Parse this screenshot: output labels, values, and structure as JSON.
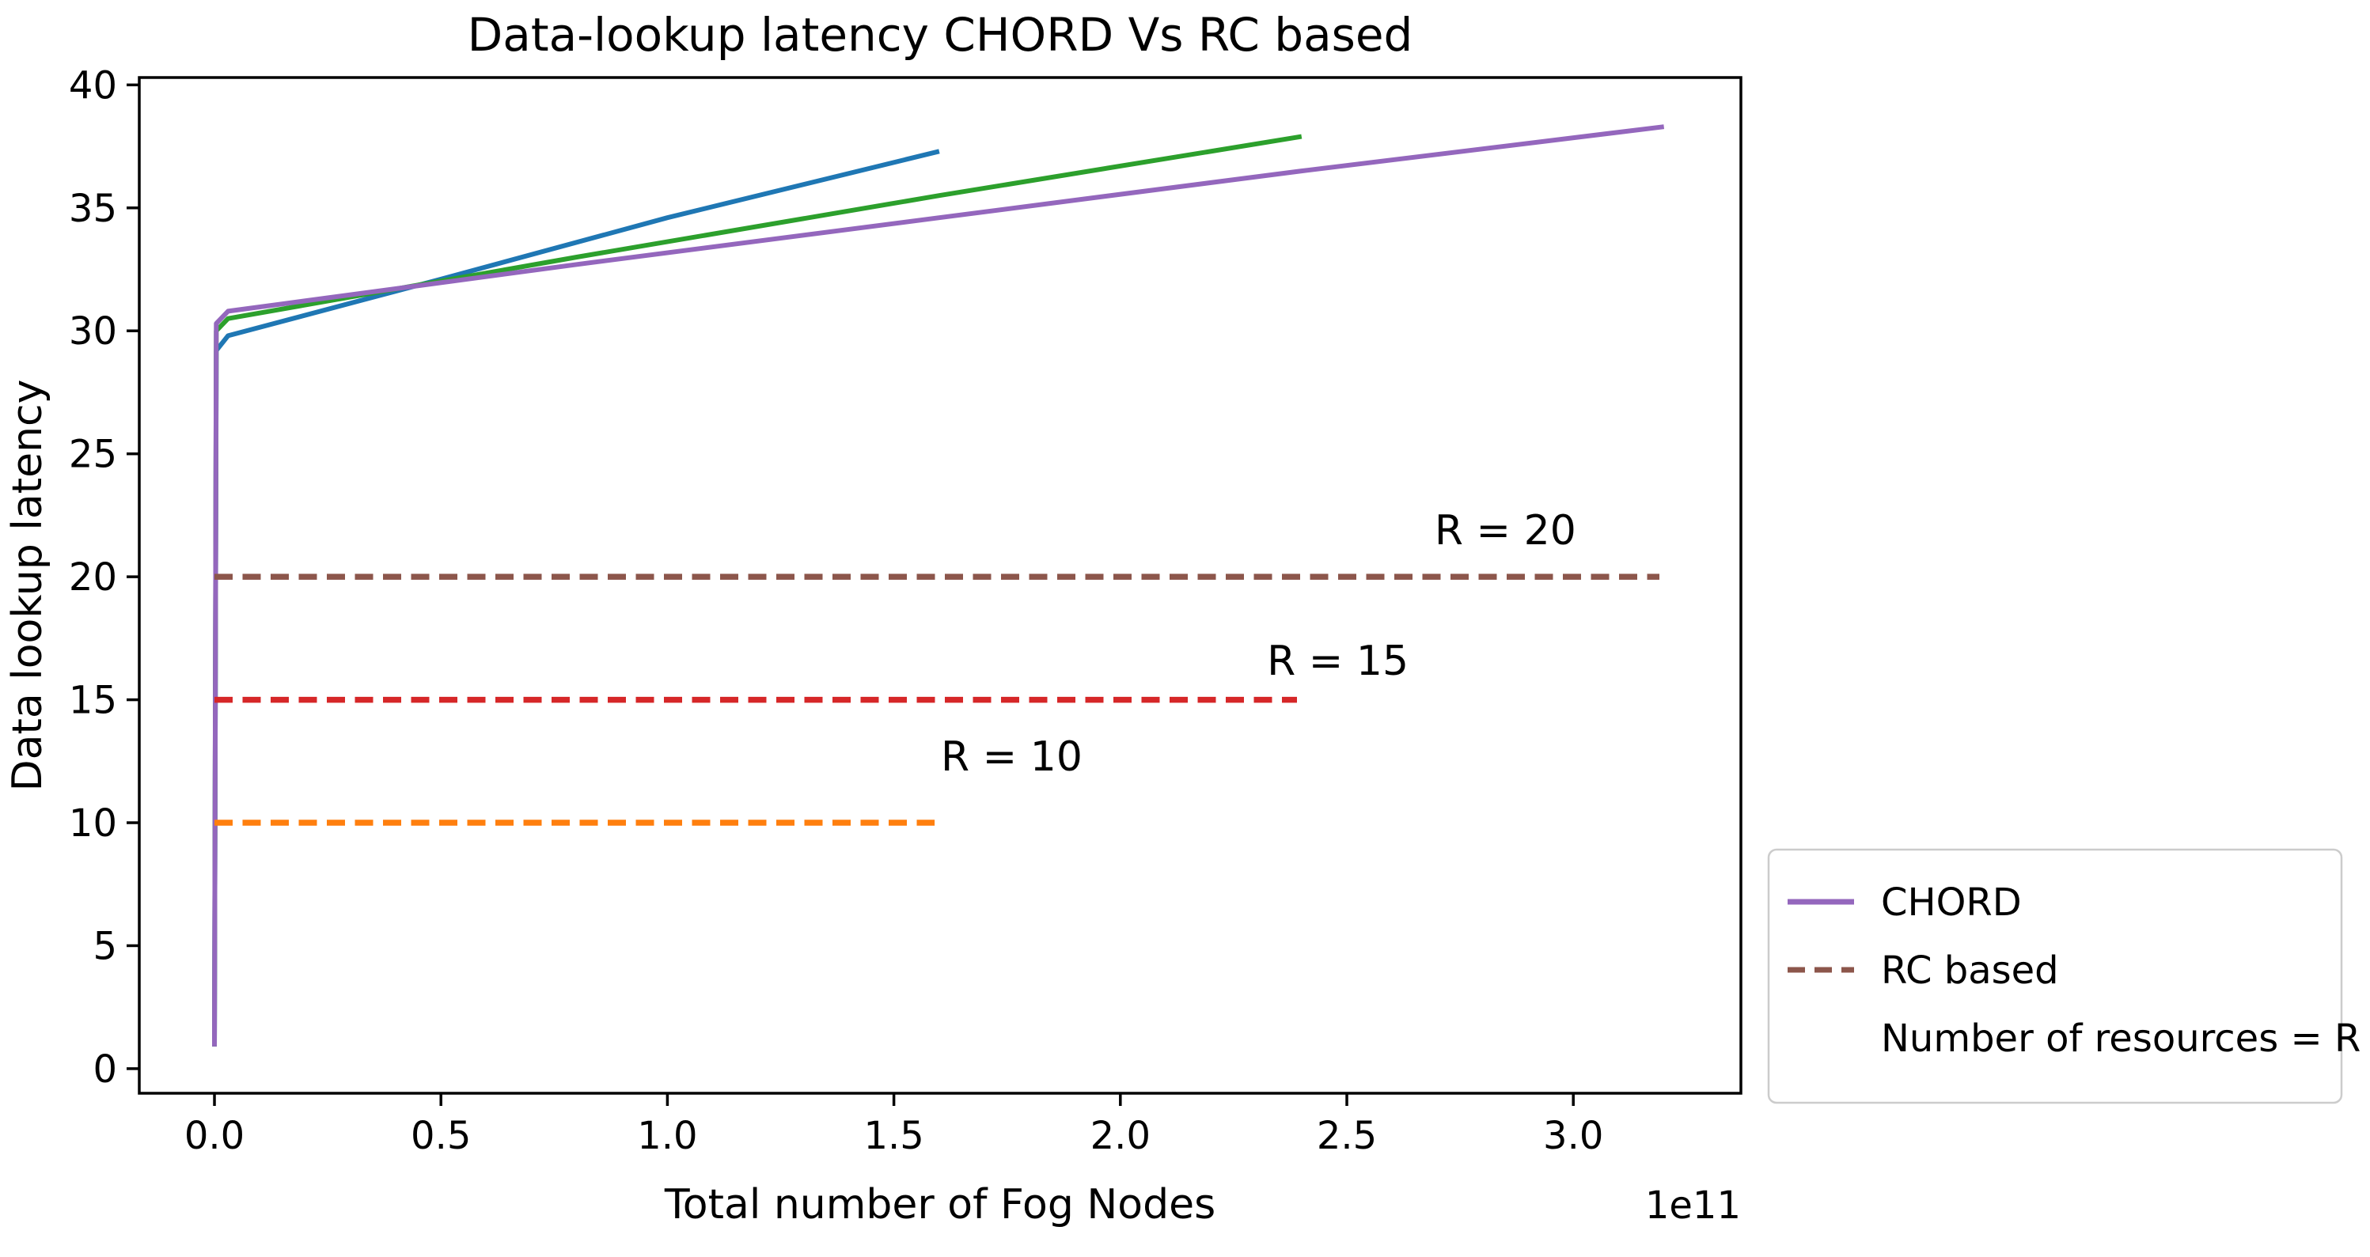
{
  "figure": {
    "background": "#ffffff",
    "spine_color": "#000000"
  },
  "chart_data": {
    "type": "line",
    "title": "Data-lookup latency CHORD Vs RC based",
    "xlabel": "Total number of Fog Nodes",
    "ylabel": "Data lookup latency",
    "x_offset_label": "1e11",
    "x_units_note": "x values below are in units of 1e11 fog nodes",
    "xlim": [
      -0.166,
      3.37
    ],
    "ylim": [
      -1.0,
      40.3
    ],
    "grid": false,
    "x_ticks": [
      0.0,
      0.5,
      1.0,
      1.5,
      2.0,
      2.5,
      3.0
    ],
    "x_tick_labels": [
      "0.0",
      "0.5",
      "1.0",
      "1.5",
      "2.0",
      "2.5",
      "3.0"
    ],
    "y_ticks": [
      0,
      5,
      10,
      15,
      20,
      25,
      30,
      35,
      40
    ],
    "y_tick_labels": [
      "0",
      "5",
      "10",
      "15",
      "20",
      "25",
      "30",
      "35",
      "40"
    ],
    "series": [
      {
        "name": "CHORD (N up to 1.6e11)",
        "group": "CHORD",
        "color": "#1f77b4",
        "style": "solid",
        "points": [
          [
            0,
            0.9
          ],
          [
            0.004,
            29.2
          ],
          [
            0.03,
            29.8
          ],
          [
            0.5,
            32.1
          ],
          [
            1.0,
            34.6
          ],
          [
            1.6,
            37.3
          ]
        ]
      },
      {
        "name": "CHORD (N up to 2.4e11)",
        "group": "CHORD",
        "color": "#2ca02c",
        "style": "solid",
        "points": [
          [
            0,
            0.9
          ],
          [
            0.004,
            30.0
          ],
          [
            0.03,
            30.5
          ],
          [
            0.8,
            33.0
          ],
          [
            1.6,
            35.5
          ],
          [
            2.4,
            37.9
          ]
        ]
      },
      {
        "name": "CHORD (N up to 3.2e11)",
        "group": "CHORD",
        "color": "#9467bd",
        "style": "solid",
        "points": [
          [
            0,
            0.9
          ],
          [
            0.004,
            30.3
          ],
          [
            0.03,
            30.8
          ],
          [
            0.8,
            32.7
          ],
          [
            1.6,
            34.6
          ],
          [
            2.4,
            36.5
          ],
          [
            3.2,
            38.3
          ]
        ]
      },
      {
        "name": "RC based R=10",
        "group": "RC based",
        "color": "#ff7f0e",
        "style": "dashed",
        "points": [
          [
            0,
            10
          ],
          [
            1.59,
            10
          ]
        ]
      },
      {
        "name": "RC based R=15",
        "group": "RC based",
        "color": "#d62728",
        "style": "dashed",
        "points": [
          [
            0,
            15
          ],
          [
            2.39,
            15
          ]
        ]
      },
      {
        "name": "RC based R=20",
        "group": "RC based",
        "color": "#8c564b",
        "style": "dashed",
        "points": [
          [
            0,
            20
          ],
          [
            3.19,
            20
          ]
        ]
      }
    ],
    "annotations": [
      {
        "text": "R = 10",
        "x": 1.76,
        "y": 12.7
      },
      {
        "text": "R = 15",
        "x": 2.48,
        "y": 16.6
      },
      {
        "text": "R = 20",
        "x": 2.85,
        "y": 21.9
      }
    ],
    "legend": {
      "position": "outside lower right",
      "entries": [
        {
          "label": "CHORD",
          "color": "#9467bd",
          "style": "solid"
        },
        {
          "label": "RC based",
          "color": "#8c564b",
          "style": "dashed"
        },
        {
          "label": "Number of resources = R",
          "color": null,
          "style": "none"
        }
      ]
    }
  }
}
